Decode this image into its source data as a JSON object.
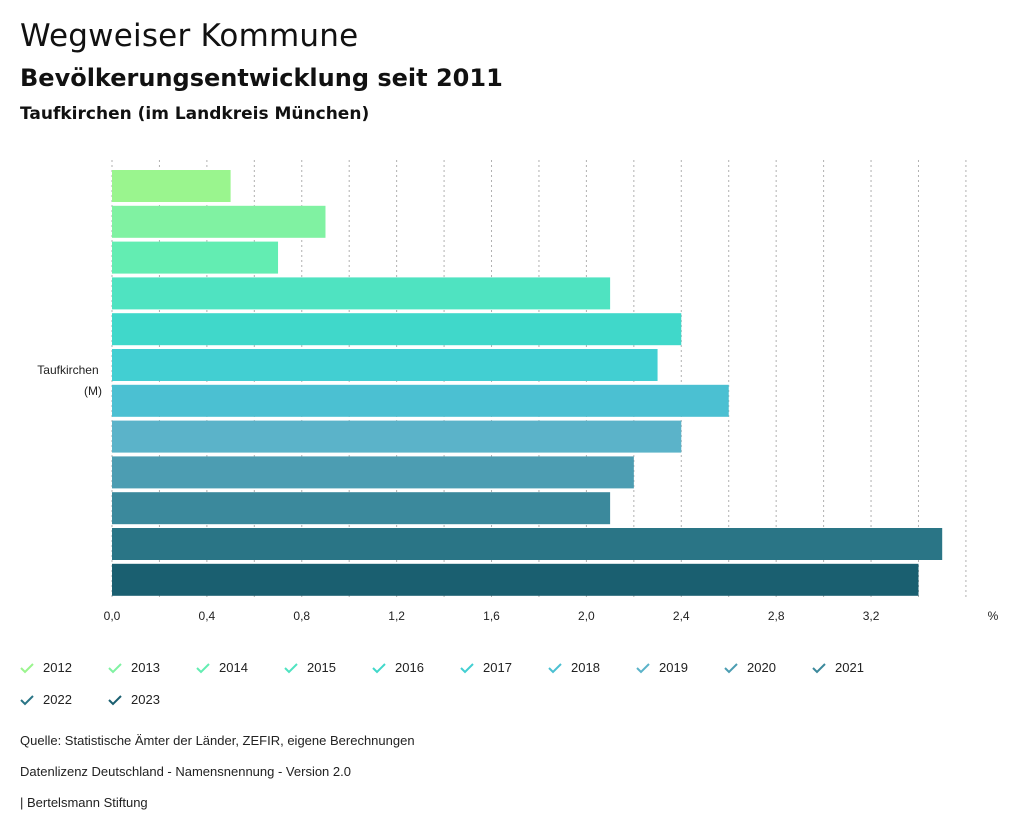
{
  "header": {
    "title": "Wegweiser Kommune",
    "subtitle": "Bevölkerungsentwicklung seit 2011",
    "region": "Taufkirchen (im Landkreis München)"
  },
  "chart_data": {
    "type": "bar",
    "orientation": "horizontal",
    "categories": [
      "Taufkirchen (M)"
    ],
    "category_label_lines": [
      "Taufkirchen",
      "(M)"
    ],
    "series": [
      {
        "name": "2012",
        "values": [
          0.5
        ],
        "color": "#9af58e"
      },
      {
        "name": "2013",
        "values": [
          0.9
        ],
        "color": "#80f2a2"
      },
      {
        "name": "2014",
        "values": [
          0.7
        ],
        "color": "#63edb2"
      },
      {
        "name": "2015",
        "values": [
          2.1
        ],
        "color": "#4fe3c1"
      },
      {
        "name": "2016",
        "values": [
          2.4
        ],
        "color": "#40d8ca"
      },
      {
        "name": "2017",
        "values": [
          2.3
        ],
        "color": "#42cfd2"
      },
      {
        "name": "2018",
        "values": [
          2.6
        ],
        "color": "#4bc0d2"
      },
      {
        "name": "2019",
        "values": [
          2.4
        ],
        "color": "#5bb3c9"
      },
      {
        "name": "2020",
        "values": [
          2.2
        ],
        "color": "#4c9db2"
      },
      {
        "name": "2021",
        "values": [
          2.1
        ],
        "color": "#3b899c"
      },
      {
        "name": "2022",
        "values": [
          3.5
        ],
        "color": "#2a7586"
      },
      {
        "name": "2023",
        "values": [
          3.4
        ],
        "color": "#1a5f70"
      }
    ],
    "xlim": [
      0,
      3.7
    ],
    "ticks": [
      0,
      0.4,
      0.8,
      1.2,
      1.6,
      2.0,
      2.4,
      2.8,
      3.2
    ],
    "tick_labels": [
      "0,0",
      "0,4",
      "0,8",
      "1,2",
      "1,6",
      "2,0",
      "2,4",
      "2,8",
      "3,2"
    ],
    "unit": "%",
    "grid": true,
    "legend_position": "bottom"
  },
  "footer": {
    "source": "Quelle: Statistische Ämter der Länder, ZEFIR, eigene Berechnungen",
    "license": "Datenlizenz Deutschland - Namensnennung - Version 2.0",
    "publisher": "| Bertelsmann Stiftung"
  }
}
